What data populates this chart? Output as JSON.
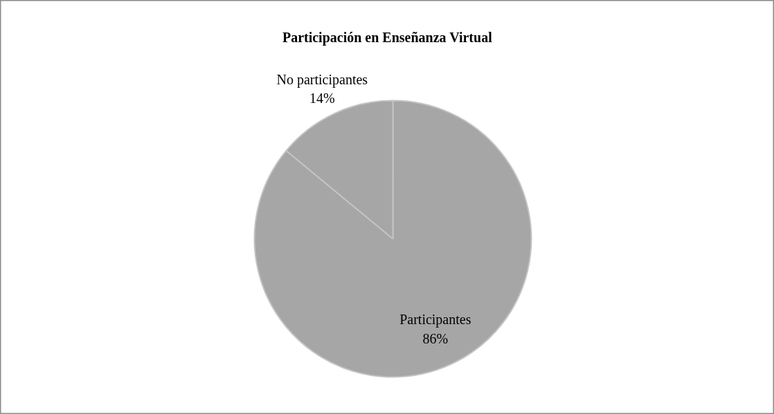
{
  "chart_data": {
    "type": "pie",
    "title": "Participación en Enseñanza Virtual",
    "categories": [
      "Participantes",
      "No participantes"
    ],
    "values": [
      86,
      14
    ],
    "colors": [
      "#a6a6a6",
      "#a6a6a6"
    ],
    "value_labels": [
      "86%",
      "14%"
    ]
  }
}
